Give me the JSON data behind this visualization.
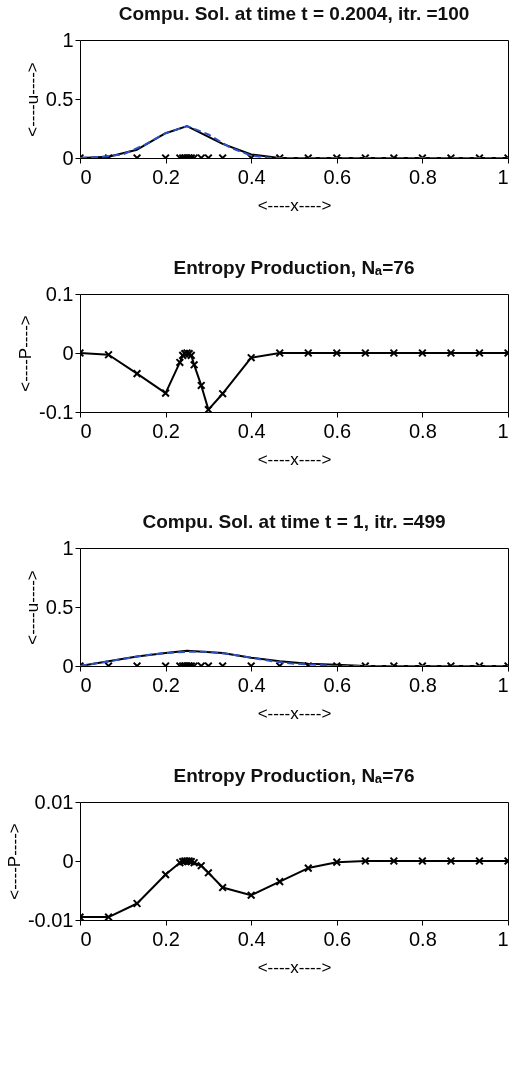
{
  "chart_data": [
    {
      "type": "line",
      "title": "Compu. Sol. at time t = 0.2004,  itr. =100",
      "xlabel": "<----x---->",
      "ylabel": "<----u---->",
      "xlim": [
        0,
        1
      ],
      "ylim": [
        0,
        1
      ],
      "xticks": [
        0,
        0.2,
        0.4,
        0.6,
        0.8,
        1
      ],
      "yticks": [
        0,
        0.5,
        1
      ],
      "grid": false,
      "series": [
        {
          "type": "scatter",
          "color": "#000000",
          "marker": "cross",
          "x": [
            0,
            0.0667,
            0.1333,
            0.2,
            0.2333,
            0.24,
            0.245,
            0.25,
            0.255,
            0.26,
            0.2667,
            0.2833,
            0.3,
            0.3333,
            0.4,
            0.4667,
            0.5333,
            0.6,
            0.6667,
            0.7333,
            0.8,
            0.8667,
            0.9333,
            1
          ],
          "values": [
            0,
            0,
            0,
            0,
            0,
            0,
            0,
            0,
            0,
            0,
            0,
            0,
            0,
            0,
            0,
            0,
            0,
            0,
            0,
            0,
            0,
            0,
            0,
            0
          ]
        },
        {
          "color": "#000000",
          "marker": "none",
          "line_style": "solid",
          "x": [
            0,
            0.0667,
            0.1333,
            0.2,
            0.25,
            0.3333,
            0.4,
            0.4667,
            0.5333,
            0.6,
            0.7,
            0.8,
            0.9,
            1
          ],
          "values": [
            0,
            0.01,
            0.07,
            0.21,
            0.27,
            0.12,
            0.03,
            0,
            0,
            0,
            0,
            0,
            0,
            0
          ]
        },
        {
          "color": "#2b50c8",
          "marker": "none",
          "line_style": "dashed",
          "x": [
            0,
            0.05,
            0.1,
            0.15,
            0.2,
            0.25,
            0.3,
            0.35,
            0.4,
            0.45,
            0.5,
            0.6,
            0.7,
            0.8,
            0.9,
            1
          ],
          "values": [
            0,
            0.01,
            0.03,
            0.11,
            0.21,
            0.27,
            0.2,
            0.09,
            0.02,
            0,
            0,
            0,
            0,
            0,
            0,
            0
          ]
        }
      ]
    },
    {
      "type": "line",
      "title": "Entropy Production,  Nₐ=76",
      "xlabel": "<----x---->",
      "ylabel": "<----P---->",
      "xlim": [
        0,
        1
      ],
      "ylim": [
        -0.1,
        0.1
      ],
      "xticks": [
        0,
        0.2,
        0.4,
        0.6,
        0.8,
        1
      ],
      "yticks": [
        -0.1,
        0,
        0.1
      ],
      "grid": false,
      "series": [
        {
          "color": "#000000",
          "marker": "cross",
          "line_style": "solid",
          "x": [
            0,
            0.0667,
            0.1333,
            0.2,
            0.2333,
            0.24,
            0.245,
            0.25,
            0.255,
            0.26,
            0.2667,
            0.2833,
            0.3,
            0.3333,
            0.4,
            0.4667,
            0.5333,
            0.6,
            0.6667,
            0.7333,
            0.8,
            0.8667,
            0.9333,
            1
          ],
          "values": [
            0,
            -0.003,
            -0.035,
            -0.068,
            -0.016,
            -0.004,
            -0.001,
            0,
            -0.001,
            -0.004,
            -0.02,
            -0.055,
            -0.096,
            -0.069,
            -0.008,
            0,
            0,
            0,
            0,
            0,
            0,
            0,
            0,
            0
          ]
        }
      ]
    },
    {
      "type": "line",
      "title": "Compu. Sol. at time t = 1,  itr. =499",
      "xlabel": "<----x---->",
      "ylabel": "<----u---->",
      "xlim": [
        0,
        1
      ],
      "ylim": [
        0,
        1
      ],
      "xticks": [
        0,
        0.2,
        0.4,
        0.6,
        0.8,
        1
      ],
      "yticks": [
        0,
        0.5,
        1
      ],
      "grid": false,
      "series": [
        {
          "type": "scatter",
          "color": "#000000",
          "marker": "cross",
          "x": [
            0,
            0.0667,
            0.1333,
            0.2,
            0.2333,
            0.24,
            0.245,
            0.25,
            0.255,
            0.26,
            0.2667,
            0.2833,
            0.3,
            0.3333,
            0.4,
            0.4667,
            0.5333,
            0.6,
            0.6667,
            0.7333,
            0.8,
            0.8667,
            0.9333,
            1
          ],
          "values": [
            0,
            0,
            0,
            0,
            0,
            0,
            0,
            0,
            0,
            0,
            0,
            0,
            0,
            0,
            0,
            0,
            0,
            0,
            0,
            0,
            0,
            0,
            0,
            0
          ]
        },
        {
          "color": "#000000",
          "marker": "none",
          "line_style": "solid",
          "x": [
            0,
            0.0667,
            0.1333,
            0.2,
            0.25,
            0.3333,
            0.4,
            0.4667,
            0.5333,
            0.6,
            0.6667,
            0.8,
            1
          ],
          "values": [
            0,
            0.04,
            0.08,
            0.11,
            0.13,
            0.11,
            0.07,
            0.04,
            0.02,
            0.01,
            0,
            0,
            0
          ]
        },
        {
          "color": "#2b50c8",
          "marker": "none",
          "line_style": "dashed",
          "x": [
            0,
            0.05,
            0.1,
            0.15,
            0.2,
            0.25,
            0.3,
            0.35,
            0.4,
            0.45,
            0.5,
            0.55,
            0.6,
            0.7,
            0.8,
            0.9,
            1
          ],
          "values": [
            0,
            0.03,
            0.06,
            0.09,
            0.11,
            0.12,
            0.12,
            0.1,
            0.07,
            0.04,
            0.02,
            0.01,
            0,
            0,
            0,
            0,
            0
          ]
        }
      ]
    },
    {
      "type": "line",
      "title": "Entropy Production,  Nₐ=76",
      "xlabel": "<----x---->",
      "ylabel": "<----P---->",
      "xlim": [
        0,
        1
      ],
      "ylim": [
        -0.01,
        0.01
      ],
      "xticks": [
        0,
        0.2,
        0.4,
        0.6,
        0.8,
        1
      ],
      "yticks": [
        -0.01,
        0,
        0.01
      ],
      "grid": false,
      "series": [
        {
          "color": "#000000",
          "marker": "cross",
          "line_style": "solid",
          "x": [
            0,
            0.0667,
            0.1333,
            0.2,
            0.2333,
            0.24,
            0.245,
            0.25,
            0.255,
            0.26,
            0.2667,
            0.2833,
            0.3,
            0.3333,
            0.4,
            0.4667,
            0.5333,
            0.6,
            0.6667,
            0.7333,
            0.8,
            0.8667,
            0.9333,
            1
          ],
          "values": [
            -0.0095,
            -0.0095,
            -0.0072,
            -0.0023,
            -0.0003,
            -0.0001,
            0,
            0,
            0,
            -0.0001,
            -0.0003,
            -0.0008,
            -0.002,
            -0.0045,
            -0.0058,
            -0.0035,
            -0.0012,
            -0.0002,
            0,
            0,
            0,
            0,
            0,
            0
          ]
        }
      ]
    }
  ]
}
